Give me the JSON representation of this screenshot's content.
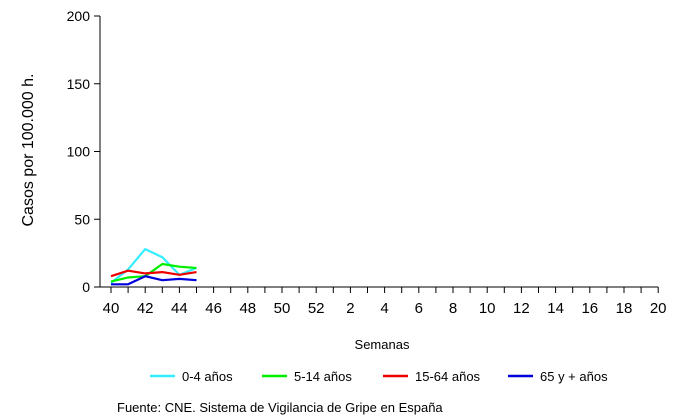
{
  "chart_data": {
    "type": "line",
    "ylabel": "Casos por 100.000 h.",
    "xlabel": "Semanas",
    "ylim": [
      0,
      200
    ],
    "yticks": [
      0,
      50,
      100,
      150,
      200
    ],
    "weeks": [
      40,
      41,
      42,
      43,
      44,
      45,
      46,
      47,
      48,
      49,
      50,
      51,
      52,
      1,
      2,
      3,
      4,
      5,
      6,
      7,
      8,
      9,
      10,
      11,
      12,
      13,
      14,
      15,
      16,
      17,
      18,
      19,
      20
    ],
    "xtick_labels": [
      "40",
      "42",
      "44",
      "46",
      "48",
      "50",
      "52",
      "2",
      "4",
      "6",
      "8",
      "10",
      "12",
      "14",
      "16",
      "18",
      "20"
    ],
    "x": [
      40,
      41,
      42,
      43,
      44,
      45
    ],
    "series": [
      {
        "name": "0-4 años",
        "color": "#33eeff",
        "values": [
          3,
          13,
          28,
          22,
          9,
          14
        ]
      },
      {
        "name": "5-14 años",
        "color": "#00ee00",
        "values": [
          4,
          7,
          8,
          17,
          15,
          14
        ]
      },
      {
        "name": "15-64 años",
        "color": "#ee0000",
        "values": [
          8,
          12,
          10,
          11,
          9,
          11
        ]
      },
      {
        "name": "65 y + años",
        "color": "#0000dd",
        "values": [
          2,
          2,
          8,
          5,
          6,
          5
        ]
      }
    ],
    "legend_position": "bottom",
    "grid": false
  },
  "source_note": "Fuente: CNE. Sistema de Vigilancia de Gripe en España"
}
